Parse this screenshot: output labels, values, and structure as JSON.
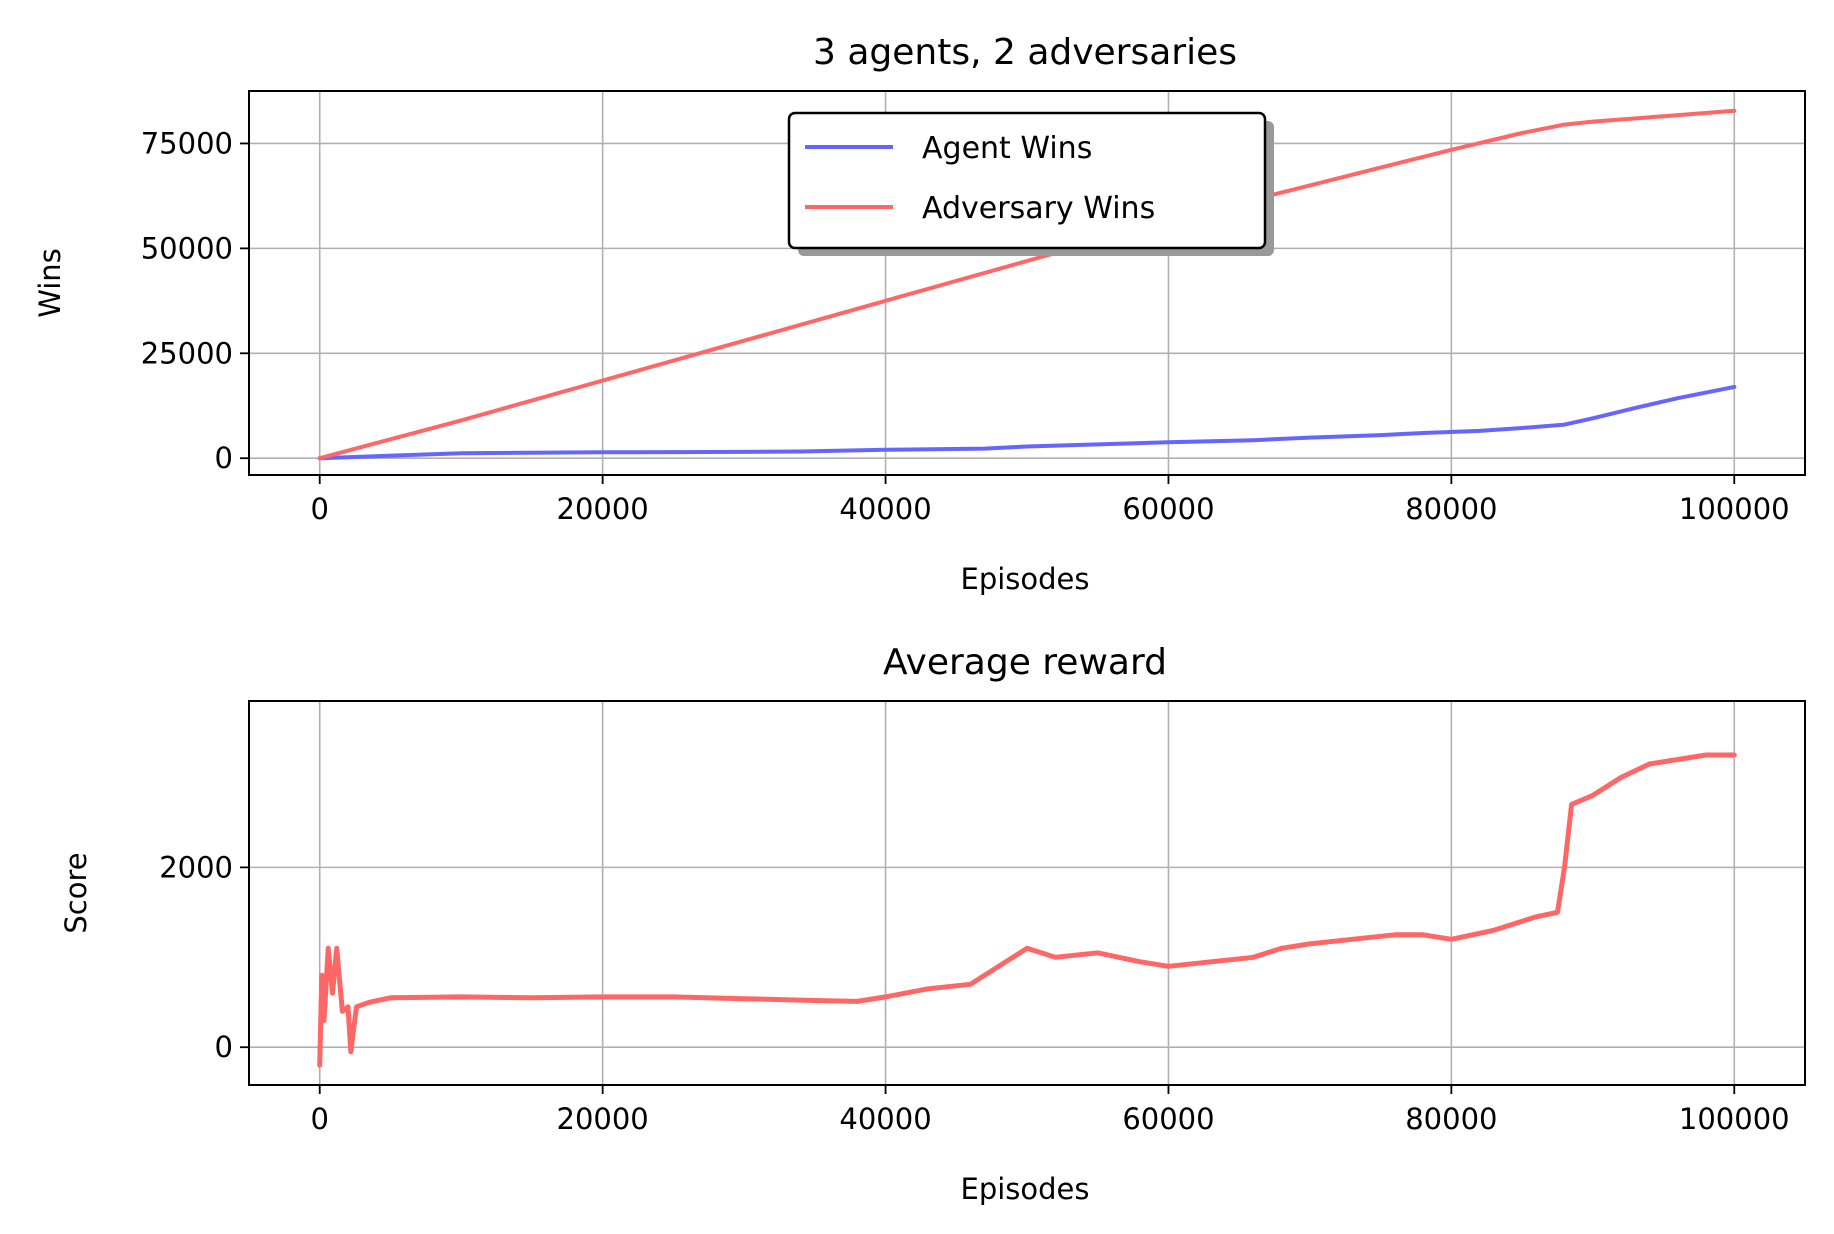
{
  "chart_data": [
    {
      "type": "line",
      "title": "3 agents, 2 adversaries",
      "xlabel": "Episodes",
      "ylabel": "Wins",
      "xlim": [
        -5000,
        105000
      ],
      "ylim": [
        -4000,
        87500
      ],
      "xticks": [
        0,
        20000,
        40000,
        60000,
        80000,
        100000
      ],
      "yticks": [
        0,
        25000,
        50000,
        75000
      ],
      "grid": true,
      "legend": "top-center",
      "series": [
        {
          "name": "Agent Wins",
          "color": "#6666ff",
          "x": [
            0,
            10000,
            20000,
            30000,
            34000,
            40000,
            47000,
            50000,
            55000,
            60000,
            66000,
            70000,
            75000,
            78000,
            82000,
            85000,
            88000,
            90000,
            93000,
            96000,
            100000
          ],
          "y": [
            0,
            1200,
            1400,
            1500,
            1600,
            2000,
            2300,
            2800,
            3300,
            3800,
            4300,
            4900,
            5500,
            6000,
            6500,
            7200,
            8000,
            9500,
            12000,
            14300,
            17000
          ]
        },
        {
          "name": "Adversary Wins",
          "color": "#ff6666",
          "x": [
            0,
            10000,
            20000,
            30000,
            40000,
            50000,
            60000,
            70000,
            80000,
            85000,
            88000,
            90000,
            95000,
            100000
          ],
          "y": [
            0,
            9000,
            18500,
            28000,
            37500,
            47000,
            56500,
            65000,
            73500,
            77500,
            79500,
            80200,
            81500,
            82800
          ]
        }
      ]
    },
    {
      "type": "line",
      "title": "Average reward",
      "xlabel": "Episodes",
      "ylabel": "Score",
      "xlim": [
        -5000,
        105000
      ],
      "ylim": [
        -420,
        3850
      ],
      "xticks": [
        0,
        20000,
        40000,
        60000,
        80000,
        100000
      ],
      "yticks": [
        0,
        2000
      ],
      "grid": true,
      "series": [
        {
          "color": "#ff6666",
          "x": [
            0,
            150,
            300,
            600,
            900,
            1200,
            1600,
            2000,
            2200,
            2600,
            3500,
            5000,
            10000,
            15000,
            20000,
            25000,
            30000,
            35000,
            38000,
            40000,
            43000,
            46000,
            48000,
            50000,
            52000,
            55000,
            58000,
            60000,
            63000,
            66000,
            68000,
            70000,
            73000,
            76000,
            78000,
            80000,
            83000,
            86000,
            87500,
            88000,
            88500,
            90000,
            92000,
            94000,
            96000,
            98000,
            100000
          ],
          "y": [
            -200,
            800,
            300,
            1100,
            600,
            1100,
            400,
            450,
            -50,
            450,
            500,
            550,
            560,
            550,
            560,
            560,
            540,
            520,
            510,
            560,
            650,
            700,
            900,
            1100,
            1000,
            1050,
            950,
            900,
            950,
            1000,
            1100,
            1150,
            1200,
            1250,
            1250,
            1200,
            1300,
            1450,
            1500,
            2000,
            2700,
            2800,
            3000,
            3150,
            3200,
            3250,
            3250
          ]
        }
      ]
    }
  ]
}
